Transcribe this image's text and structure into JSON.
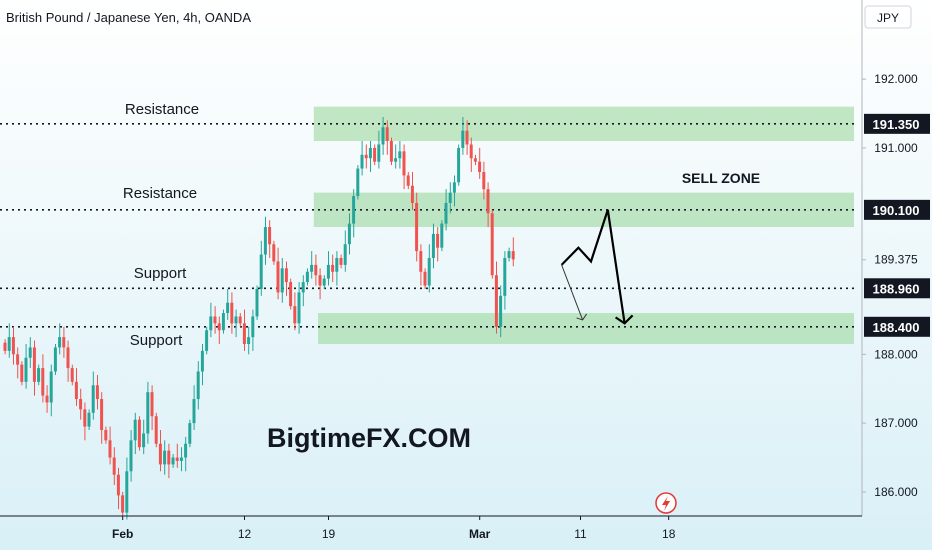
{
  "header": {
    "title": "British Pound / Japanese Yen, 4h, OANDA"
  },
  "price_axis": {
    "currency": "JPY"
  },
  "brand": {
    "watermark": "BigtimeFX.COM"
  },
  "annotations": {
    "resistance_upper": "Resistance",
    "resistance_lower": "Resistance",
    "support_upper": "Support",
    "support_lower": "Support",
    "sell_zone": "SELL ZONE"
  },
  "colors": {
    "up": "#26a69a",
    "down": "#ef5350",
    "zone": "#9ed8a0",
    "level_line": "#131722",
    "label_bg": "#131722",
    "label_text": "#ffffff"
  },
  "chart_data": {
    "type": "candlestick",
    "title": "British Pound / Japanese Yen, 4h, OANDA",
    "ylabel": "JPY",
    "ylim": [
      185.65,
      193.15
    ],
    "y_ticks": [
      186.0,
      187.0,
      188.0,
      189.375,
      191.0,
      192.0
    ],
    "x_ticks": [
      {
        "label": "Feb",
        "bar": 28
      },
      {
        "label": "12",
        "bar": 57
      },
      {
        "label": "19",
        "bar": 77
      },
      {
        "label": "Mar",
        "bar": 113
      },
      {
        "label": "11",
        "bar": 137
      },
      {
        "label": "18",
        "bar": 158
      }
    ],
    "levels": [
      {
        "price": 191.35,
        "label": "191.350"
      },
      {
        "price": 190.1,
        "label": "190.100"
      },
      {
        "price": 188.96,
        "label": "188.960"
      },
      {
        "price": 188.4,
        "label": "188.400"
      }
    ],
    "current_price": 189.375,
    "zones": [
      {
        "from": 191.1,
        "to": 191.6,
        "start_bar": 74
      },
      {
        "from": 189.85,
        "to": 190.35,
        "start_bar": 74
      },
      {
        "from": 188.15,
        "to": 188.6,
        "start_bar": 75
      }
    ],
    "projection": {
      "primary": [
        {
          "bar": 133,
          "price": 189.3
        },
        {
          "bar": 137,
          "price": 189.55
        },
        {
          "bar": 140,
          "price": 189.35
        },
        {
          "bar": 144,
          "price": 190.1
        },
        {
          "bar": 148,
          "price": 188.45
        }
      ],
      "secondary": [
        {
          "bar": 133,
          "price": 189.3
        },
        {
          "bar": 138,
          "price": 188.5
        }
      ]
    },
    "close_series": [
      188.05,
      188.25,
      188.0,
      187.85,
      187.6,
      187.95,
      188.1,
      187.6,
      187.8,
      187.4,
      187.3,
      187.75,
      188.1,
      188.25,
      188.1,
      187.8,
      187.6,
      187.35,
      187.2,
      186.95,
      187.15,
      187.55,
      187.35,
      186.9,
      186.75,
      186.5,
      186.25,
      185.95,
      185.7,
      186.3,
      186.75,
      187.05,
      186.65,
      186.85,
      187.45,
      187.1,
      186.7,
      186.4,
      186.6,
      186.4,
      186.5,
      186.45,
      186.5,
      186.7,
      187.0,
      187.35,
      187.75,
      188.05,
      188.35,
      188.55,
      188.45,
      188.35,
      188.6,
      188.75,
      188.45,
      188.55,
      188.45,
      188.15,
      188.25,
      188.55,
      188.95,
      189.45,
      189.85,
      189.6,
      189.35,
      188.9,
      189.25,
      189.05,
      188.7,
      188.45,
      188.9,
      189.05,
      189.2,
      189.3,
      189.15,
      189.0,
      189.1,
      189.3,
      189.2,
      189.4,
      189.3,
      189.6,
      189.9,
      190.3,
      190.7,
      190.9,
      190.85,
      191.0,
      190.8,
      191.05,
      191.3,
      191.1,
      190.8,
      190.85,
      190.95,
      190.6,
      190.45,
      190.2,
      189.5,
      189.2,
      189.0,
      189.4,
      189.75,
      189.55,
      189.9,
      190.2,
      190.35,
      190.5,
      191.0,
      191.25,
      191.05,
      190.85,
      190.8,
      190.65,
      190.4,
      190.05,
      189.15,
      188.4,
      188.85,
      189.4,
      189.5,
      189.38
    ]
  }
}
